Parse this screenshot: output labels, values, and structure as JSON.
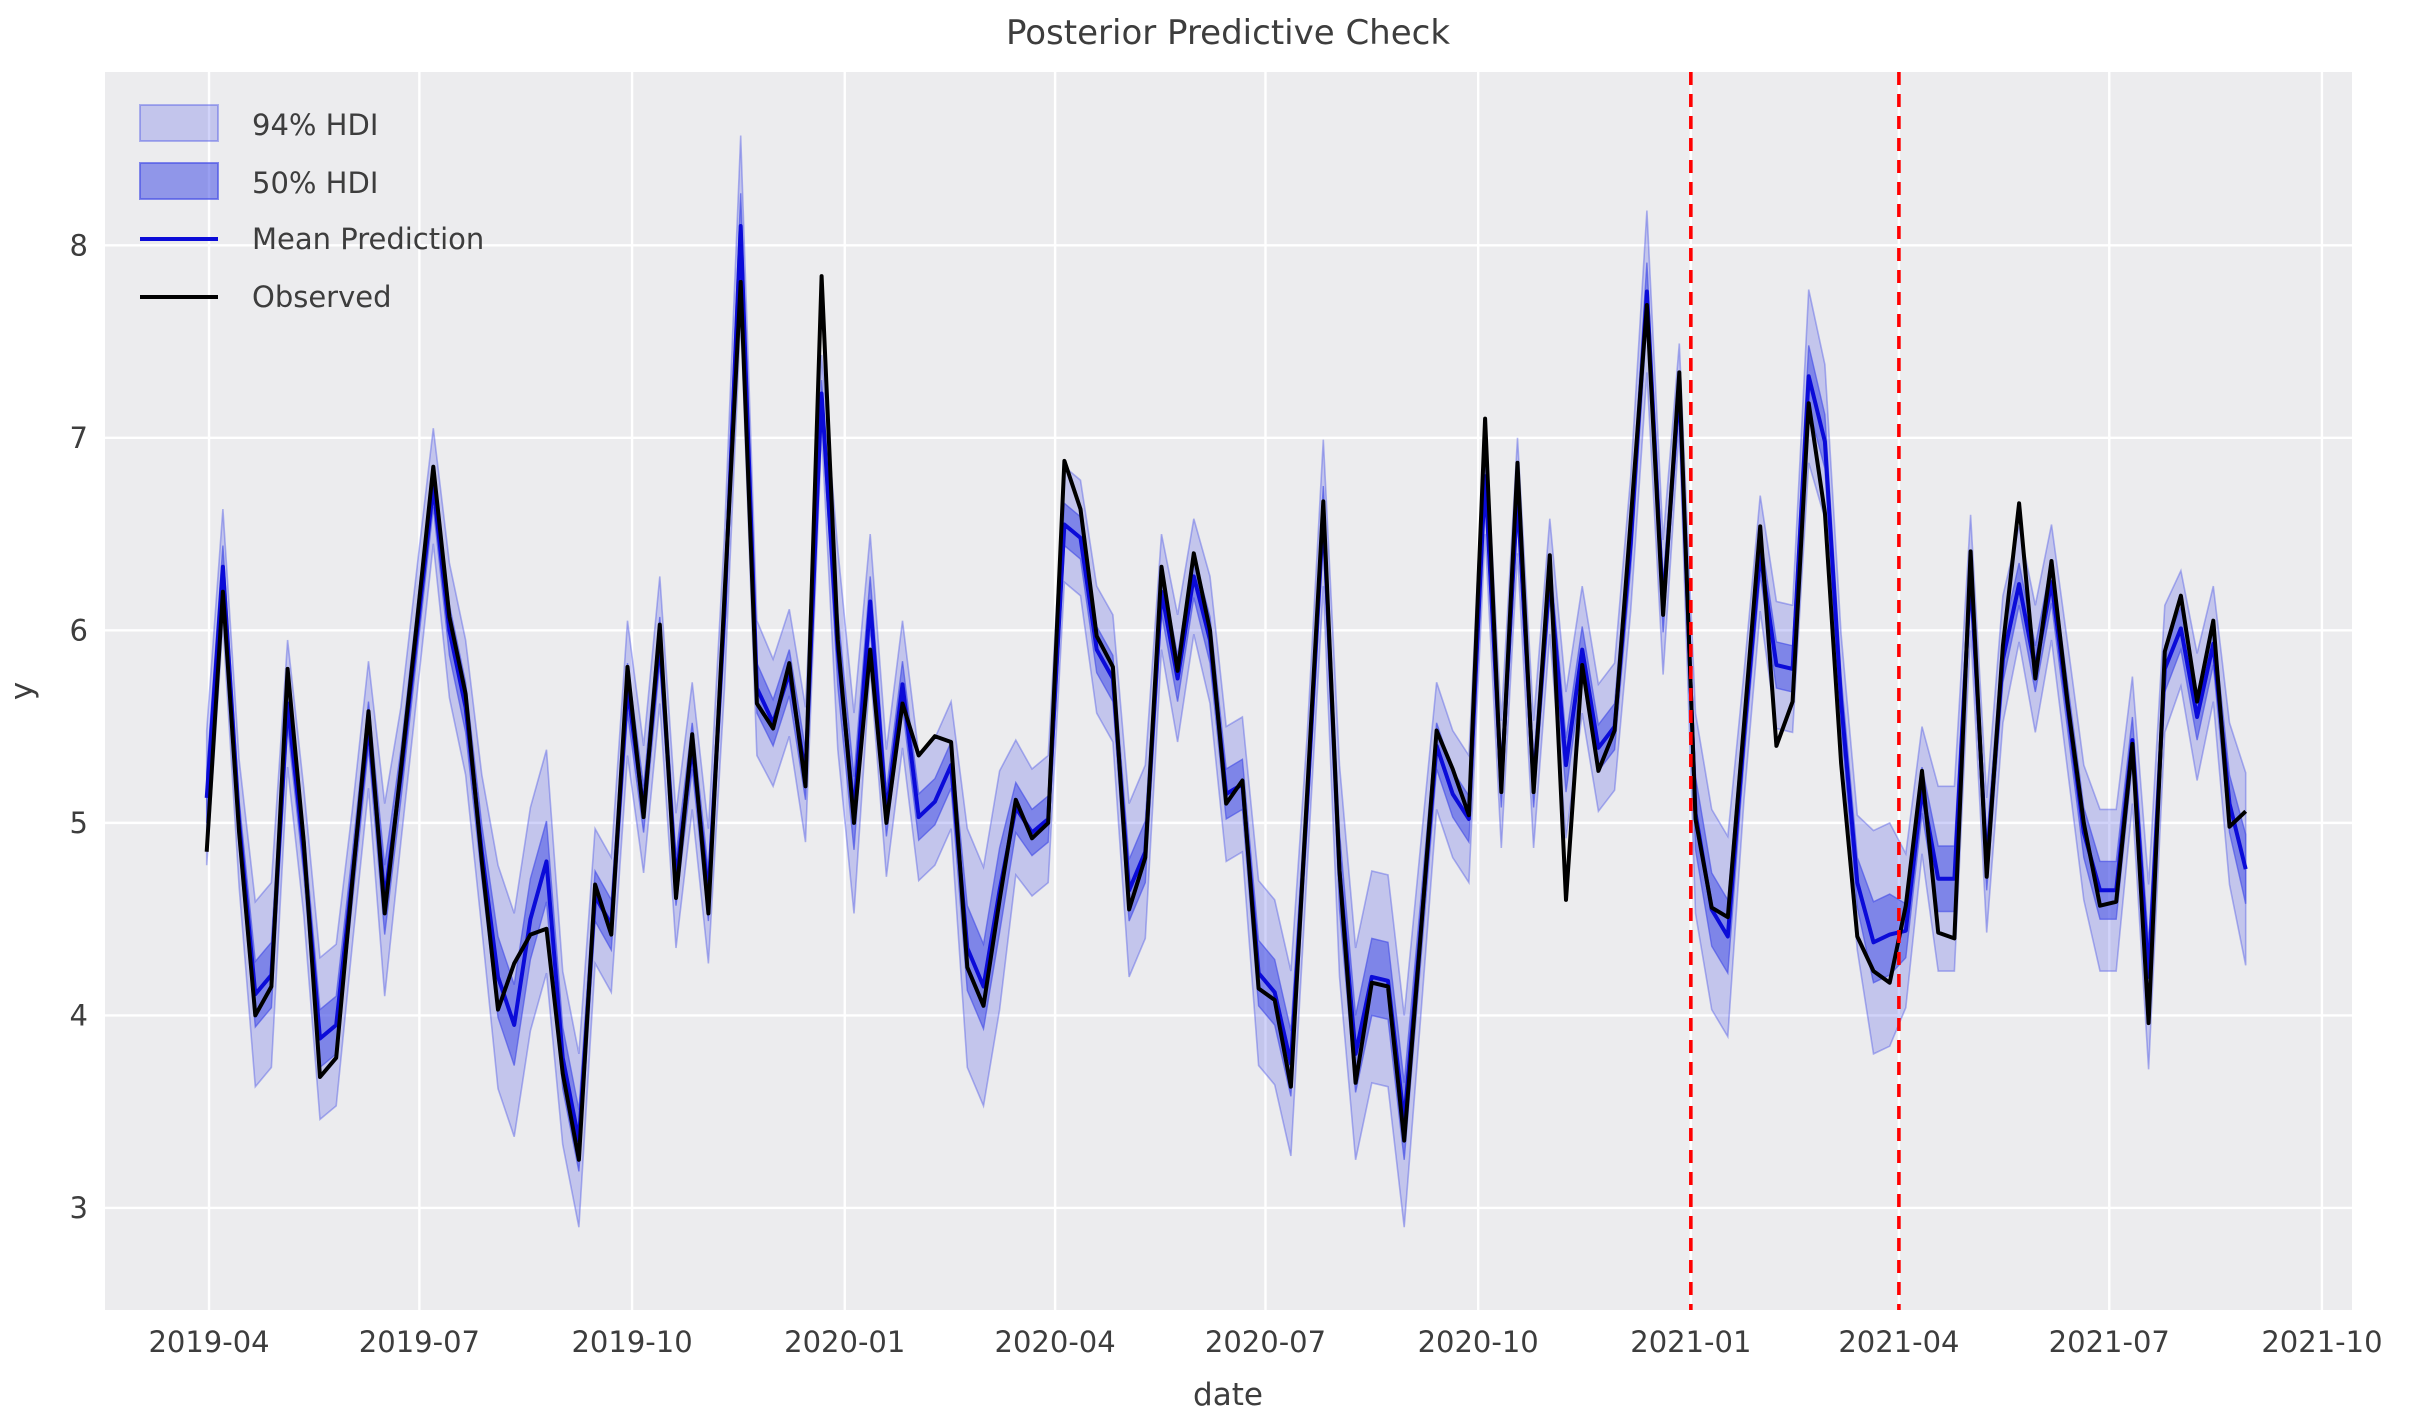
{
  "figure": {
    "title": "Posterior Predictive Check",
    "xlabel": "date",
    "ylabel": "y"
  },
  "legend": {
    "position": "upper left",
    "items": [
      {
        "label": "94% HDI",
        "swatch": "patch-light"
      },
      {
        "label": "50% HDI",
        "swatch": "patch-dark"
      },
      {
        "label": "Mean Prediction",
        "swatch": "line-blue"
      },
      {
        "label": "Observed",
        "swatch": "line-black"
      }
    ]
  },
  "colors": {
    "background": "#ffffff",
    "axes_background": "#ececee",
    "grid": "#ffffff",
    "band_base": "rgb(70,80,230)",
    "hdi94_fill": "rgba(70,80,230,0.25)",
    "hdi94_edge": "rgba(70,80,230,0.40)",
    "hdi50_fill": "rgba(70,80,230,0.55)",
    "hdi50_edge": "rgba(70,80,230,0.65)",
    "mean_line": "#0b0bd8",
    "observed_line": "#000000",
    "event_line": "#ff0000",
    "text": "#3d3d3d"
  },
  "axes": {
    "y_ticks": [
      3,
      4,
      5,
      6,
      7,
      8
    ],
    "x_ticks": [
      {
        "label": "2019-04",
        "date": "2019-04-01"
      },
      {
        "label": "2019-07",
        "date": "2019-07-01"
      },
      {
        "label": "2019-10",
        "date": "2019-10-01"
      },
      {
        "label": "2020-01",
        "date": "2020-01-01"
      },
      {
        "label": "2020-04",
        "date": "2020-04-01"
      },
      {
        "label": "2020-07",
        "date": "2020-07-01"
      },
      {
        "label": "2020-10",
        "date": "2020-10-01"
      },
      {
        "label": "2021-01",
        "date": "2021-01-01"
      },
      {
        "label": "2021-04",
        "date": "2021-04-01"
      },
      {
        "label": "2021-07",
        "date": "2021-07-01"
      },
      {
        "label": "2021-10",
        "date": "2021-10-01"
      }
    ]
  },
  "chart_data": {
    "type": "line",
    "title": "Posterior Predictive Check",
    "xlabel": "date",
    "ylabel": "y",
    "grid": true,
    "legend_position": "upper left",
    "xlim": [
      "2019-02-15",
      "2021-10-14"
    ],
    "ylim": [
      2.47,
      8.9
    ],
    "x": [
      "2019-03-31",
      "2019-04-07",
      "2019-04-14",
      "2019-04-21",
      "2019-04-28",
      "2019-05-05",
      "2019-05-12",
      "2019-05-19",
      "2019-05-26",
      "2019-06-02",
      "2019-06-09",
      "2019-06-16",
      "2019-06-23",
      "2019-06-30",
      "2019-07-07",
      "2019-07-14",
      "2019-07-21",
      "2019-07-28",
      "2019-08-04",
      "2019-08-11",
      "2019-08-18",
      "2019-08-25",
      "2019-09-01",
      "2019-09-08",
      "2019-09-15",
      "2019-09-22",
      "2019-09-29",
      "2019-10-06",
      "2019-10-13",
      "2019-10-20",
      "2019-10-27",
      "2019-11-03",
      "2019-11-10",
      "2019-11-17",
      "2019-11-24",
      "2019-12-01",
      "2019-12-08",
      "2019-12-15",
      "2019-12-22",
      "2019-12-29",
      "2020-01-05",
      "2020-01-12",
      "2020-01-19",
      "2020-01-26",
      "2020-02-02",
      "2020-02-09",
      "2020-02-16",
      "2020-02-23",
      "2020-03-01",
      "2020-03-08",
      "2020-03-15",
      "2020-03-22",
      "2020-03-29",
      "2020-04-05",
      "2020-04-12",
      "2020-04-19",
      "2020-04-26",
      "2020-05-03",
      "2020-05-10",
      "2020-05-17",
      "2020-05-24",
      "2020-05-31",
      "2020-06-07",
      "2020-06-14",
      "2020-06-21",
      "2020-06-28",
      "2020-07-05",
      "2020-07-12",
      "2020-07-19",
      "2020-07-26",
      "2020-08-02",
      "2020-08-09",
      "2020-08-16",
      "2020-08-23",
      "2020-08-30",
      "2020-09-06",
      "2020-09-13",
      "2020-09-20",
      "2020-09-27",
      "2020-10-04",
      "2020-10-11",
      "2020-10-18",
      "2020-10-25",
      "2020-11-01",
      "2020-11-08",
      "2020-11-15",
      "2020-11-22",
      "2020-11-29",
      "2020-12-06",
      "2020-12-13",
      "2020-12-20",
      "2020-12-27",
      "2021-01-03",
      "2021-01-10",
      "2021-01-17",
      "2021-01-24",
      "2021-01-31",
      "2021-02-07",
      "2021-02-14",
      "2021-02-21",
      "2021-02-28",
      "2021-03-07",
      "2021-03-14",
      "2021-03-21",
      "2021-03-28",
      "2021-04-04",
      "2021-04-11",
      "2021-04-18",
      "2021-04-25",
      "2021-05-02",
      "2021-05-09",
      "2021-05-16",
      "2021-05-23",
      "2021-05-30",
      "2021-06-06",
      "2021-06-13",
      "2021-06-20",
      "2021-06-27",
      "2021-07-04",
      "2021-07-11",
      "2021-07-18",
      "2021-07-25",
      "2021-08-01",
      "2021-08-08",
      "2021-08-15",
      "2021-08-22",
      "2021-08-29"
    ],
    "series": [
      {
        "name": "Observed",
        "color": "#000000",
        "values": [
          4.85,
          6.2,
          4.95,
          4.0,
          4.15,
          5.8,
          4.9,
          3.68,
          3.78,
          4.7,
          5.58,
          4.53,
          5.28,
          6.05,
          6.85,
          6.07,
          5.67,
          4.8,
          4.03,
          4.27,
          4.42,
          4.45,
          3.7,
          3.25,
          4.68,
          4.42,
          5.81,
          5.03,
          6.03,
          4.61,
          5.46,
          4.53,
          6.18,
          7.81,
          5.62,
          5.49,
          5.83,
          5.19,
          7.84,
          5.95,
          5.0,
          5.9,
          5.0,
          5.62,
          5.35,
          5.45,
          5.42,
          4.25,
          4.05,
          4.6,
          5.12,
          4.92,
          5.0,
          6.88,
          6.63,
          5.97,
          5.81,
          4.55,
          4.82,
          6.33,
          5.79,
          6.4,
          6.0,
          5.1,
          5.22,
          4.14,
          4.08,
          3.63,
          5.15,
          6.67,
          4.75,
          3.65,
          4.17,
          4.15,
          3.35,
          4.4,
          5.48,
          5.28,
          5.04,
          7.1,
          5.16,
          6.87,
          5.16,
          6.39,
          4.6,
          5.82,
          5.27,
          5.48,
          6.57,
          7.69,
          6.08,
          7.34,
          5.02,
          4.56,
          4.51,
          5.51,
          6.54,
          5.4,
          5.63,
          7.18,
          6.61,
          5.31,
          4.41,
          4.23,
          4.17,
          4.57,
          5.27,
          4.43,
          4.4,
          6.41,
          4.72,
          5.92,
          6.66,
          5.75,
          6.36,
          5.62,
          5.0,
          4.57,
          4.59,
          5.41,
          3.96,
          5.89,
          6.18,
          5.63,
          6.05,
          4.98,
          5.06
        ]
      },
      {
        "name": "Mean Prediction",
        "color": "#0b0bd8",
        "values": [
          5.13,
          6.33,
          5.0,
          4.11,
          4.21,
          5.62,
          4.85,
          3.88,
          3.95,
          4.72,
          5.51,
          4.6,
          5.25,
          6.0,
          6.75,
          6.0,
          5.6,
          4.85,
          4.2,
          3.95,
          4.5,
          4.8,
          3.78,
          3.35,
          4.62,
          4.47,
          5.7,
          5.07,
          5.95,
          4.7,
          5.4,
          4.62,
          6.1,
          8.1,
          5.7,
          5.52,
          5.78,
          5.25,
          7.23,
          5.9,
          5.05,
          6.15,
          5.05,
          5.72,
          5.03,
          5.11,
          5.3,
          4.35,
          4.15,
          4.65,
          5.08,
          4.95,
          5.02,
          6.55,
          6.48,
          5.9,
          5.75,
          4.65,
          4.85,
          6.2,
          5.75,
          6.28,
          5.95,
          5.15,
          5.2,
          4.22,
          4.12,
          3.75,
          5.1,
          6.61,
          4.75,
          3.8,
          4.2,
          4.18,
          3.45,
          4.42,
          5.4,
          5.15,
          5.02,
          6.8,
          5.2,
          6.7,
          5.2,
          6.28,
          5.3,
          5.9,
          5.39,
          5.5,
          6.45,
          7.76,
          6.12,
          7.27,
          5.05,
          4.55,
          4.41,
          5.45,
          6.4,
          5.82,
          5.8,
          7.32,
          6.98,
          5.63,
          4.69,
          4.38,
          4.42,
          4.44,
          5.17,
          4.71,
          4.71,
          6.3,
          4.78,
          5.85,
          6.24,
          5.8,
          6.25,
          5.6,
          4.95,
          4.65,
          4.65,
          5.43,
          4.2,
          5.8,
          6.01,
          5.55,
          5.93,
          5.1,
          4.76
        ]
      }
    ],
    "bands": [
      {
        "name": "94% HDI",
        "around": "Mean Prediction",
        "halfwidths": [
          0.35,
          0.3,
          0.33,
          0.48,
          0.48,
          0.33,
          0.33,
          0.42,
          0.42,
          0.35,
          0.33,
          0.5,
          0.35,
          0.33,
          0.3,
          0.35,
          0.35,
          0.4,
          0.58,
          0.58,
          0.58,
          0.58,
          0.45,
          0.45,
          0.35,
          0.35,
          0.35,
          0.33,
          0.33,
          0.35,
          0.33,
          0.35,
          0.4,
          0.47,
          0.35,
          0.33,
          0.33,
          0.35,
          0.2,
          0.52,
          0.52,
          0.35,
          0.33,
          0.33,
          0.33,
          0.33,
          0.33,
          0.62,
          0.62,
          0.62,
          0.35,
          0.33,
          0.33,
          0.3,
          0.3,
          0.33,
          0.33,
          0.45,
          0.45,
          0.3,
          0.33,
          0.3,
          0.33,
          0.35,
          0.35,
          0.48,
          0.48,
          0.48,
          0.35,
          0.38,
          0.55,
          0.55,
          0.55,
          0.55,
          0.55,
          0.45,
          0.33,
          0.33,
          0.33,
          0.3,
          0.33,
          0.3,
          0.33,
          0.3,
          0.38,
          0.33,
          0.33,
          0.33,
          0.35,
          0.42,
          0.35,
          0.22,
          0.52,
          0.52,
          0.52,
          0.33,
          0.3,
          0.33,
          0.33,
          0.45,
          0.4,
          0.35,
          0.35,
          0.58,
          0.58,
          0.4,
          0.33,
          0.48,
          0.48,
          0.3,
          0.35,
          0.33,
          0.3,
          0.33,
          0.3,
          0.33,
          0.35,
          0.42,
          0.42,
          0.33,
          0.48,
          0.33,
          0.3,
          0.33,
          0.3,
          0.42,
          0.5
        ]
      },
      {
        "name": "50% HDI",
        "around": "Mean Prediction",
        "halfwidths": [
          0.13,
          0.11,
          0.12,
          0.17,
          0.17,
          0.12,
          0.12,
          0.15,
          0.15,
          0.13,
          0.12,
          0.18,
          0.13,
          0.12,
          0.11,
          0.13,
          0.13,
          0.14,
          0.21,
          0.21,
          0.21,
          0.21,
          0.16,
          0.16,
          0.13,
          0.13,
          0.13,
          0.12,
          0.12,
          0.13,
          0.12,
          0.13,
          0.14,
          0.17,
          0.13,
          0.12,
          0.12,
          0.13,
          0.07,
          0.19,
          0.19,
          0.13,
          0.12,
          0.12,
          0.12,
          0.12,
          0.12,
          0.22,
          0.22,
          0.22,
          0.13,
          0.12,
          0.12,
          0.11,
          0.11,
          0.12,
          0.12,
          0.16,
          0.16,
          0.11,
          0.12,
          0.11,
          0.12,
          0.13,
          0.13,
          0.17,
          0.17,
          0.17,
          0.13,
          0.14,
          0.2,
          0.2,
          0.2,
          0.2,
          0.2,
          0.16,
          0.12,
          0.12,
          0.12,
          0.11,
          0.12,
          0.11,
          0.12,
          0.11,
          0.14,
          0.12,
          0.12,
          0.12,
          0.13,
          0.15,
          0.13,
          0.08,
          0.19,
          0.19,
          0.19,
          0.12,
          0.11,
          0.12,
          0.12,
          0.16,
          0.14,
          0.13,
          0.13,
          0.21,
          0.21,
          0.14,
          0.12,
          0.17,
          0.17,
          0.11,
          0.13,
          0.12,
          0.11,
          0.12,
          0.11,
          0.12,
          0.13,
          0.15,
          0.15,
          0.12,
          0.17,
          0.12,
          0.11,
          0.12,
          0.11,
          0.15,
          0.18
        ]
      }
    ],
    "vlines": [
      {
        "date": "2021-01-01",
        "style": "dashed",
        "color": "#ff0000"
      },
      {
        "date": "2021-04-01",
        "style": "dashed",
        "color": "#ff0000"
      }
    ]
  }
}
